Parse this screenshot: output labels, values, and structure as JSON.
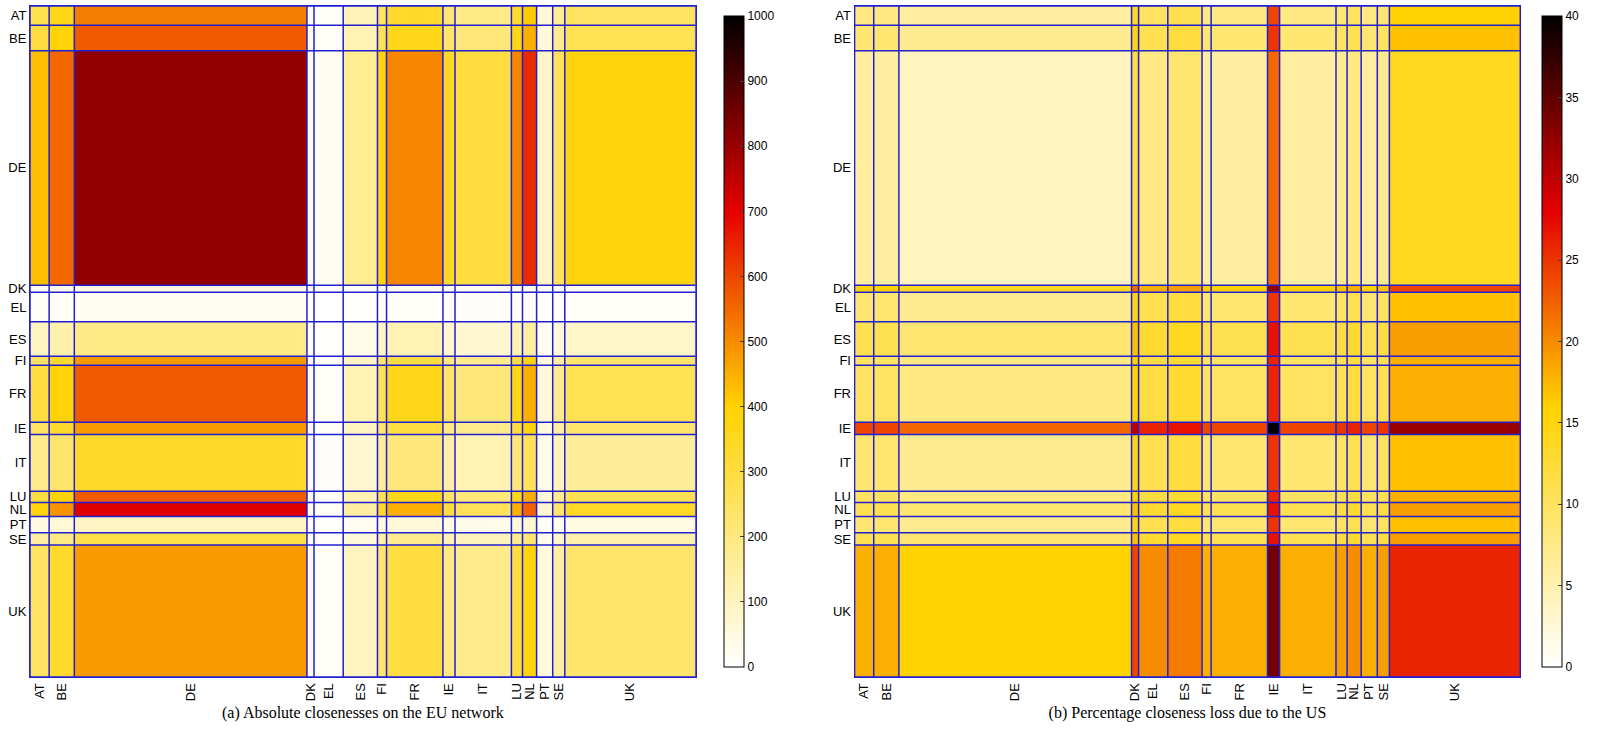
{
  "chart_data": [
    {
      "type": "heatmap",
      "caption": "(a) Absolute closenesses on the EU network",
      "categories": [
        "AT",
        "BE",
        "DE",
        "DK",
        "EL",
        "ES",
        "FI",
        "FR",
        "IE",
        "IT",
        "LU",
        "NL",
        "PT",
        "SE",
        "UK"
      ],
      "sizes": [
        19,
        25,
        231,
        7,
        29,
        34,
        9,
        56,
        12,
        56,
        11,
        14,
        16,
        12,
        130
      ],
      "z": [
        [
          280,
          360,
          520,
          30,
          10,
          110,
          250,
          330,
          220,
          190,
          330,
          410,
          60,
          170,
          250
        ],
        [
          300,
          390,
          570,
          30,
          10,
          120,
          270,
          360,
          240,
          210,
          360,
          450,
          60,
          180,
          270
        ],
        [
          430,
          550,
          810,
          40,
          20,
          170,
          380,
          510,
          340,
          300,
          510,
          640,
          90,
          260,
          380
        ],
        [
          25,
          33,
          48,
          3,
          1,
          10,
          23,
          30,
          20,
          18,
          30,
          38,
          5,
          15,
          23
        ],
        [
          10,
          13,
          19,
          1,
          0,
          4,
          9,
          12,
          8,
          7,
          12,
          15,
          2,
          6,
          9
        ],
        [
          100,
          130,
          190,
          10,
          4,
          40,
          90,
          120,
          80,
          70,
          120,
          150,
          20,
          60,
          90
        ],
        [
          250,
          330,
          480,
          25,
          10,
          100,
          230,
          300,
          200,
          180,
          300,
          380,
          50,
          150,
          230
        ],
        [
          300,
          390,
          570,
          30,
          10,
          120,
          270,
          360,
          240,
          210,
          360,
          450,
          60,
          180,
          270
        ],
        [
          250,
          330,
          480,
          25,
          10,
          100,
          230,
          300,
          200,
          180,
          300,
          380,
          50,
          150,
          230
        ],
        [
          180,
          230,
          330,
          18,
          7,
          70,
          160,
          210,
          140,
          120,
          210,
          260,
          35,
          110,
          160
        ],
        [
          300,
          390,
          570,
          30,
          10,
          120,
          270,
          360,
          240,
          210,
          360,
          450,
          60,
          180,
          270
        ],
        [
          380,
          490,
          710,
          38,
          15,
          150,
          340,
          450,
          300,
          260,
          450,
          560,
          75,
          230,
          340
        ],
        [
          50,
          65,
          95,
          5,
          2,
          20,
          45,
          60,
          40,
          35,
          60,
          75,
          10,
          30,
          45
        ],
        [
          150,
          195,
          285,
          15,
          6,
          60,
          135,
          180,
          120,
          105,
          180,
          225,
          30,
          90,
          135
        ],
        [
          250,
          330,
          480,
          25,
          10,
          100,
          230,
          300,
          200,
          180,
          300,
          380,
          50,
          150,
          230
        ]
      ],
      "zlim": [
        0,
        1000
      ],
      "zticks": [
        0,
        100,
        200,
        300,
        400,
        500,
        600,
        700,
        800,
        900,
        1000
      ]
    },
    {
      "type": "heatmap",
      "caption": "(b) Percentage closeness loss due to the US",
      "categories": [
        "AT",
        "BE",
        "DE",
        "DK",
        "EL",
        "ES",
        "FI",
        "FR",
        "IE",
        "IT",
        "LU",
        "NL",
        "PT",
        "SE",
        "UK"
      ],
      "sizes": [
        19,
        25,
        231,
        7,
        29,
        34,
        9,
        56,
        12,
        56,
        11,
        14,
        16,
        12,
        130
      ],
      "z": [
        [
          8,
          8,
          6,
          14,
          10,
          11,
          8,
          8,
          24,
          8,
          9,
          10,
          8,
          9,
          16
        ],
        [
          9,
          9,
          7,
          15,
          11,
          12,
          9,
          9,
          25,
          9,
          10,
          11,
          9,
          10,
          17
        ],
        [
          6,
          6,
          4,
          12,
          8,
          9,
          6,
          6,
          22,
          6,
          7,
          8,
          6,
          7,
          14
        ],
        [
          16,
          16,
          14,
          22,
          18,
          19,
          16,
          16,
          32,
          16,
          17,
          18,
          16,
          17,
          24
        ],
        [
          9,
          9,
          7,
          15,
          11,
          12,
          9,
          9,
          25,
          9,
          10,
          11,
          9,
          10,
          17
        ],
        [
          11,
          11,
          9,
          17,
          13,
          14,
          11,
          11,
          27,
          11,
          12,
          13,
          11,
          12,
          19
        ],
        [
          10,
          10,
          8,
          16,
          12,
          13,
          10,
          10,
          26,
          10,
          11,
          12,
          10,
          11,
          18
        ],
        [
          10,
          10,
          8,
          16,
          12,
          13,
          10,
          10,
          26,
          10,
          11,
          12,
          10,
          11,
          18
        ],
        [
          24,
          24,
          22,
          30,
          26,
          27,
          24,
          24,
          40,
          24,
          25,
          26,
          24,
          25,
          32
        ],
        [
          9,
          9,
          7,
          15,
          11,
          12,
          9,
          9,
          25,
          9,
          10,
          11,
          9,
          10,
          17
        ],
        [
          10,
          10,
          8,
          16,
          12,
          13,
          10,
          10,
          26,
          10,
          11,
          12,
          10,
          11,
          18
        ],
        [
          11,
          11,
          9,
          17,
          13,
          14,
          11,
          11,
          27,
          11,
          12,
          13,
          11,
          12,
          19
        ],
        [
          9,
          9,
          7,
          15,
          11,
          12,
          9,
          9,
          25,
          9,
          10,
          11,
          9,
          10,
          17
        ],
        [
          11,
          11,
          9,
          17,
          13,
          14,
          11,
          11,
          27,
          11,
          12,
          13,
          11,
          12,
          19
        ],
        [
          18,
          18,
          16,
          24,
          20,
          21,
          18,
          18,
          34,
          18,
          19,
          20,
          18,
          19,
          26
        ]
      ],
      "zlim": [
        0,
        40
      ],
      "zticks": [
        0,
        5,
        10,
        15,
        20,
        25,
        30,
        35,
        40
      ]
    }
  ]
}
